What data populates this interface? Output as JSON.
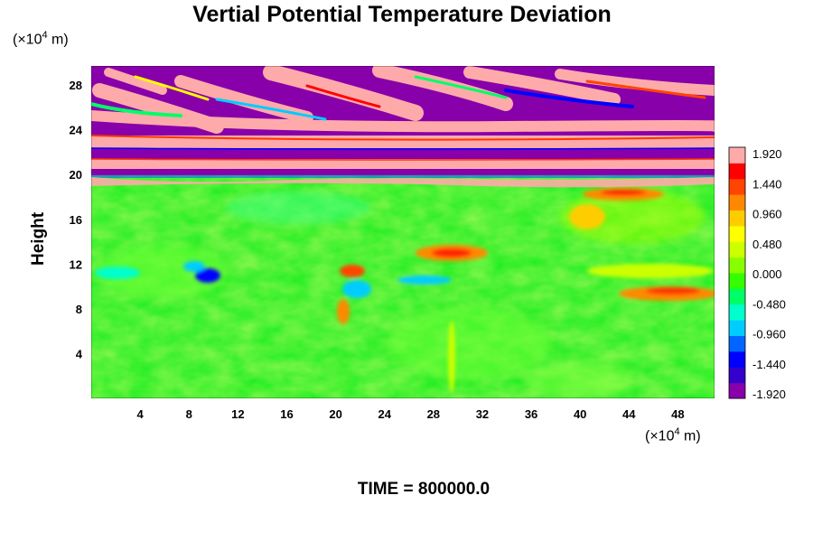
{
  "chart_data": {
    "type": "heatmap",
    "title": "Vertial Potential Temperature Deviation",
    "ylabel": "Height",
    "xlabel": "",
    "x_unit": "(×10",
    "x_unit_sup": "4",
    "x_unit_suffix": " m)",
    "y_unit": "(×10",
    "y_unit_sup": "4",
    "y_unit_suffix": " m)",
    "xlim": [
      0,
      51
    ],
    "ylim": [
      0,
      29.7
    ],
    "x_ticks": [
      4,
      8,
      12,
      16,
      20,
      24,
      28,
      32,
      36,
      40,
      44,
      48
    ],
    "y_ticks": [
      4,
      8,
      12,
      16,
      20,
      24,
      28
    ],
    "colorbar": {
      "range": [
        -1.92,
        1.92
      ],
      "tick_labels": [
        "1.920",
        "1.440",
        "0.960",
        "0.480",
        "0.000",
        "-0.480",
        "-0.960",
        "-1.440",
        "-1.920"
      ],
      "colors": [
        "#8800aa",
        "#3300cc",
        "#0000ff",
        "#0066ff",
        "#00ccff",
        "#00ffcc",
        "#00ff66",
        "#33ff00",
        "#88ff00",
        "#ccff00",
        "#ffff00",
        "#ffcc00",
        "#ff8800",
        "#ff4400",
        "#ff0000",
        "#ffaaaa"
      ]
    },
    "time_label": "TIME = 800000.0"
  }
}
